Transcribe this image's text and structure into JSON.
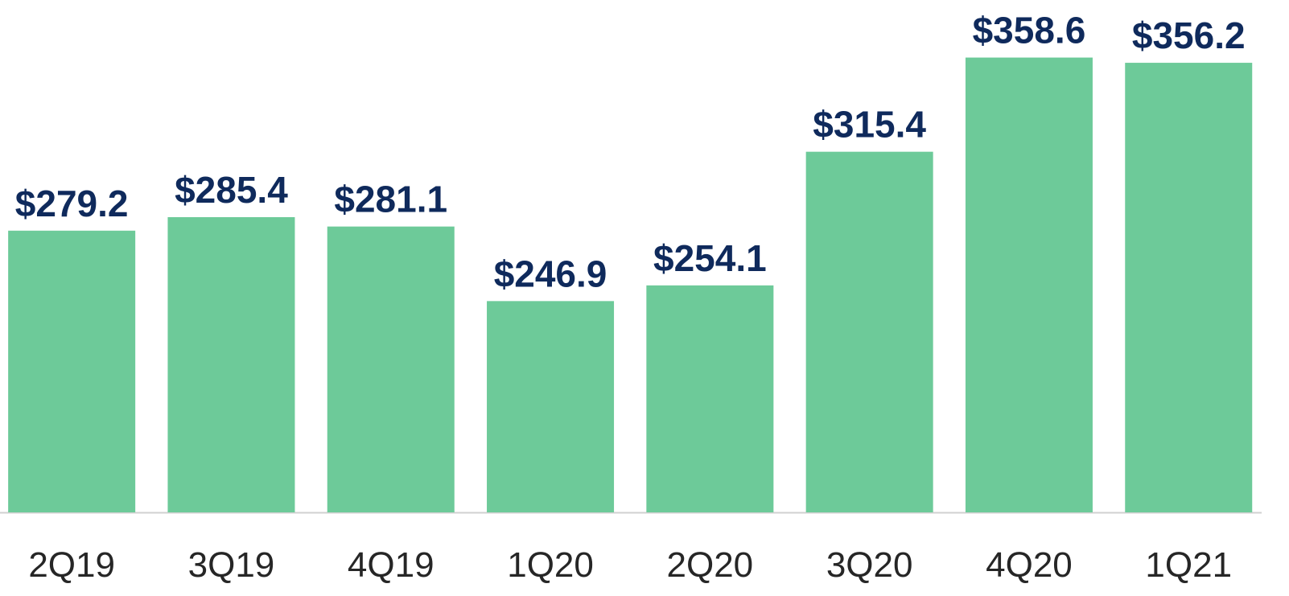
{
  "chart_data": {
    "type": "bar",
    "categories": [
      "2Q19",
      "3Q19",
      "4Q19",
      "1Q20",
      "2Q20",
      "3Q20",
      "4Q20",
      "1Q21"
    ],
    "values": [
      279.2,
      285.4,
      281.1,
      246.9,
      254.1,
      315.4,
      358.6,
      356.2
    ],
    "value_labels": [
      "$279.2",
      "$285.4",
      "$281.1",
      "$246.9",
      "$254.1",
      "$315.4",
      "$358.6",
      "$356.2"
    ],
    "color": "#6dca99",
    "ylim": [
      150,
      385
    ]
  }
}
